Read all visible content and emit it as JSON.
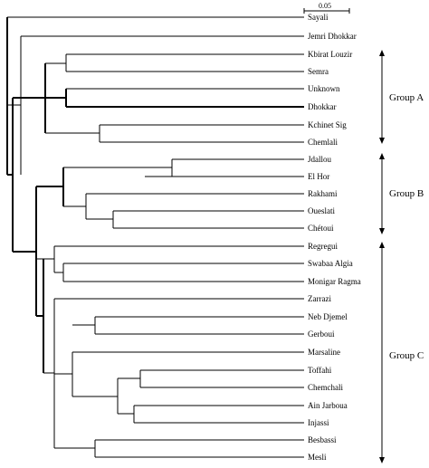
{
  "scale_bar": {
    "label": "0.05"
  },
  "leaves": [
    "Sayali",
    "Jemri Dhokkar",
    "Kbirat Louzir",
    "Semra",
    "Unknown",
    "Dhokkar",
    "Kchinet Sig",
    "Chemlali",
    "Jdallou",
    "El Hor",
    "Rakhami",
    "Oueslati",
    "Chétoui",
    "Regregui",
    "Swabaa Algia",
    "Monigar Ragma",
    "Zarrazi",
    "Neb Djemel",
    "Gerboui",
    "Marsaline",
    "Toffahi",
    "Chemchali",
    "Ain Jarboua",
    "Injassi",
    "Besbassi",
    "Mesli"
  ],
  "groups": [
    {
      "label": "Group A"
    },
    {
      "label": "Group B"
    },
    {
      "label": "Group C"
    }
  ]
}
